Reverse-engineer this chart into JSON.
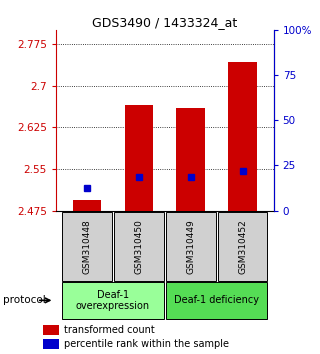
{
  "title": "GDS3490 / 1433324_at",
  "samples": [
    "GSM310448",
    "GSM310450",
    "GSM310449",
    "GSM310452"
  ],
  "bar_values": [
    2.495,
    2.665,
    2.66,
    2.743
  ],
  "percentile_values": [
    2.515,
    2.536,
    2.536,
    2.547
  ],
  "y_min": 2.475,
  "y_max": 2.8,
  "y_ticks": [
    2.475,
    2.55,
    2.625,
    2.7,
    2.775
  ],
  "y_tick_labels": [
    "2.475",
    "2.55",
    "2.625",
    "2.7",
    "2.775"
  ],
  "right_y_ticks": [
    0,
    25,
    50,
    75,
    100
  ],
  "right_y_tick_labels": [
    "0",
    "25",
    "50",
    "75",
    "100%"
  ],
  "bar_color": "#cc0000",
  "marker_color": "#0000cc",
  "bar_width": 0.55,
  "groups": [
    {
      "label": "Deaf-1\noverexpression",
      "samples": [
        0,
        1
      ],
      "color": "#99ff99"
    },
    {
      "label": "Deaf-1 deficiency",
      "samples": [
        2,
        3
      ],
      "color": "#55dd55"
    }
  ],
  "protocol_label": "protocol",
  "legend_bar_label": "transformed count",
  "legend_marker_label": "percentile rank within the sample",
  "title_fontsize": 9,
  "tick_fontsize": 7.5,
  "sample_fontsize": 6.5,
  "group_fontsize": 7,
  "legend_fontsize": 7
}
